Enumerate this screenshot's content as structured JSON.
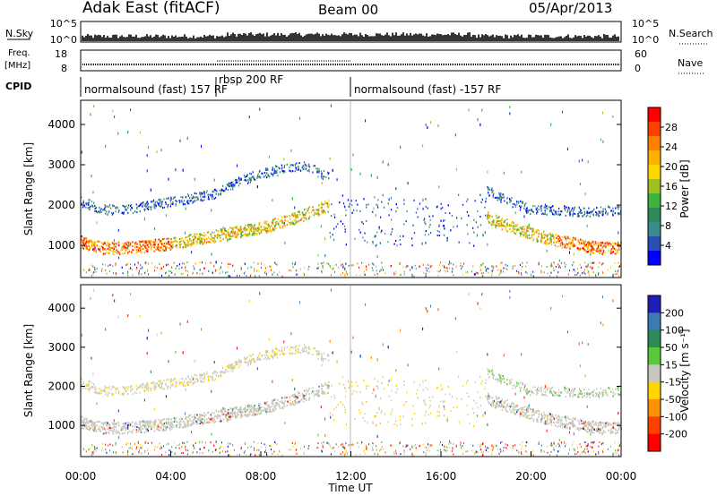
{
  "header": {
    "title_left": "Adak East (fitACF)",
    "title_center": "Beam 00",
    "title_right": "05/Apr/2013"
  },
  "panels": {
    "nsky": {
      "label": "N.Sky",
      "ticks": [
        "10^5",
        "10^0"
      ],
      "right_ticks": [
        "10^5",
        "10^0"
      ],
      "right_label": "N.Search"
    },
    "freq": {
      "label": "Freq.",
      "unit": "[MHz]",
      "ticks": [
        "18",
        "8"
      ],
      "right_ticks": [
        "60",
        "0"
      ],
      "right_label": "Nave"
    },
    "cpid": {
      "label": "CPID",
      "segments": [
        "normalsound (fast) 157 RF",
        "rbsp 200 RF",
        "normalsound (fast) -157 RF"
      ]
    }
  },
  "colorbars": {
    "power": {
      "label": "Power [dB]",
      "ticks": [
        "28",
        "24",
        "20",
        "16",
        "12",
        "8",
        "4"
      ],
      "colors": [
        "#ff0000",
        "#ff4000",
        "#ff8000",
        "#ffb000",
        "#ffd700",
        "#a0c020",
        "#3cb43c",
        "#2e8b57",
        "#3c8c8c",
        "#2850b4",
        "#0000ff"
      ]
    },
    "velocity": {
      "label": "Velocity [m s⁻¹]",
      "ticks": [
        "200",
        "100",
        "50",
        "15",
        "-15",
        "-50",
        "-100",
        "-200"
      ],
      "colors": [
        "#1e1eb4",
        "#3c7ab4",
        "#2e8b57",
        "#5ac83c",
        "#c8c8c0",
        "#ffd700",
        "#ff9000",
        "#ff4000",
        "#ff0000"
      ]
    }
  },
  "chart_data": [
    {
      "type": "heatmap",
      "title": "Power",
      "ylabel": "Slant Range [km]",
      "yticks": [
        "4000",
        "3000",
        "2000",
        "1000"
      ],
      "ylim": [
        200,
        4600
      ],
      "xlim": [
        0,
        24
      ],
      "x": [
        0.0,
        1.0,
        2.0,
        3.0,
        4.0,
        5.0,
        6.0,
        7.0,
        8.0,
        9.0,
        10.0,
        11.0,
        12.0,
        13.0,
        14.0,
        15.0,
        16.0,
        17.0,
        18.0,
        19.0,
        20.0,
        21.0,
        22.0,
        23.0,
        24.0
      ],
      "series": [
        {
          "values": [
            1100,
            950,
            950,
            1000,
            1050,
            1150,
            1250,
            1350,
            1450,
            1600,
            1800,
            2000,
            null,
            null,
            null,
            null,
            null,
            null,
            1700,
            1500,
            1300,
            1150,
            1050,
            950,
            950
          ]
        },
        {
          "values": [
            2100,
            1900,
            1900,
            2000,
            2100,
            2200,
            2300,
            2600,
            2800,
            2900,
            3000,
            2700,
            null,
            null,
            null,
            null,
            null,
            null,
            2400,
            2100,
            1900,
            1900,
            1850,
            1850,
            1900
          ]
        }
      ]
    },
    {
      "type": "heatmap",
      "title": "Velocity",
      "ylabel": "Slant Range [km]",
      "yticks": [
        "4000",
        "3000",
        "2000",
        "1000"
      ],
      "xticks": [
        "00:00",
        "04:00",
        "08:00",
        "12:00",
        "16:00",
        "20:00",
        "00:00"
      ],
      "xlabel": "Time UT",
      "ylim": [
        200,
        4600
      ],
      "xlim": [
        0,
        24
      ]
    }
  ]
}
